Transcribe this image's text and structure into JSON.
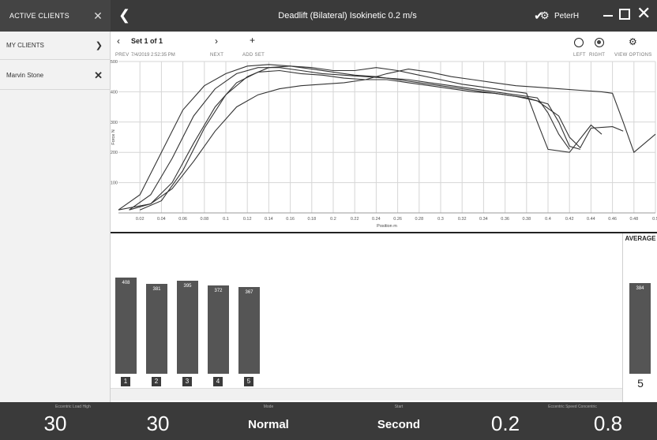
{
  "window": {
    "title": "Deadlift (Bilateral) Isokinetic 0.2 m/s",
    "user": "PeterH"
  },
  "sidebar": {
    "header": "ACTIVE CLIENTS",
    "items": [
      {
        "label": "MY CLIENTS"
      },
      {
        "label": "Marvin Stone"
      }
    ]
  },
  "set_nav": {
    "prev_label": "PREV",
    "next_label": "NEXT",
    "add_label": "ADD SET",
    "set_title": "Set 1 of 1",
    "set_date": "7/4/2019 2:52:35 PM",
    "left_label": "LEFT",
    "right_label": "RIGHT",
    "view_options_label": "VIEW OPTIONS",
    "selected_side": "right"
  },
  "chart_data": {
    "type": "line",
    "xlabel": "Position m",
    "ylabel": "Force N",
    "xlim": [
      0,
      0.5
    ],
    "ylim": [
      0,
      500
    ],
    "x_ticks": [
      "0.02",
      "0.04",
      "0.06",
      "0.08",
      "0.1",
      "0.12",
      "0.14",
      "0.16",
      "0.18",
      "0.2",
      "0.22",
      "0.24",
      "0.26",
      "0.28",
      "0.3",
      "0.32",
      "0.34",
      "0.36",
      "0.38",
      "0.4",
      "0.42",
      "0.44",
      "0.46",
      "0.48",
      "0.5"
    ],
    "y_ticks": [
      "100",
      "200",
      "300",
      "400",
      "500"
    ],
    "grid": true,
    "series": [
      {
        "points": [
          [
            0.0,
            10
          ],
          [
            0.02,
            60
          ],
          [
            0.04,
            200
          ],
          [
            0.06,
            340
          ],
          [
            0.08,
            420
          ],
          [
            0.1,
            460
          ],
          [
            0.12,
            485
          ],
          [
            0.14,
            490
          ],
          [
            0.16,
            485
          ],
          [
            0.18,
            475
          ],
          [
            0.2,
            465
          ],
          [
            0.22,
            455
          ],
          [
            0.24,
            450
          ],
          [
            0.26,
            440
          ],
          [
            0.28,
            430
          ],
          [
            0.3,
            420
          ],
          [
            0.32,
            410
          ],
          [
            0.34,
            400
          ],
          [
            0.36,
            390
          ],
          [
            0.38,
            380
          ],
          [
            0.4,
            360
          ],
          [
            0.41,
            300
          ],
          [
            0.42,
            220
          ],
          [
            0.43,
            210
          ]
        ]
      },
      {
        "points": [
          [
            0.01,
            10
          ],
          [
            0.03,
            60
          ],
          [
            0.05,
            180
          ],
          [
            0.07,
            320
          ],
          [
            0.09,
            410
          ],
          [
            0.11,
            460
          ],
          [
            0.13,
            480
          ],
          [
            0.15,
            480
          ],
          [
            0.17,
            470
          ],
          [
            0.19,
            460
          ],
          [
            0.21,
            455
          ],
          [
            0.23,
            450
          ],
          [
            0.25,
            445
          ],
          [
            0.27,
            440
          ],
          [
            0.29,
            430
          ],
          [
            0.31,
            420
          ],
          [
            0.33,
            410
          ],
          [
            0.35,
            400
          ],
          [
            0.37,
            390
          ],
          [
            0.39,
            380
          ],
          [
            0.4,
            330
          ],
          [
            0.41,
            260
          ],
          [
            0.42,
            210
          ]
        ]
      },
      {
        "points": [
          [
            0.02,
            10
          ],
          [
            0.04,
            40
          ],
          [
            0.06,
            140
          ],
          [
            0.08,
            280
          ],
          [
            0.1,
            390
          ],
          [
            0.12,
            450
          ],
          [
            0.14,
            480
          ],
          [
            0.16,
            485
          ],
          [
            0.18,
            480
          ],
          [
            0.2,
            470
          ],
          [
            0.22,
            470
          ],
          [
            0.24,
            480
          ],
          [
            0.26,
            470
          ],
          [
            0.28,
            455
          ],
          [
            0.3,
            440
          ],
          [
            0.32,
            425
          ],
          [
            0.34,
            415
          ],
          [
            0.36,
            405
          ],
          [
            0.38,
            395
          ],
          [
            0.39,
            300
          ],
          [
            0.4,
            210
          ],
          [
            0.42,
            200
          ],
          [
            0.44,
            290
          ],
          [
            0.45,
            260
          ]
        ]
      },
      {
        "points": [
          [
            0.01,
            10
          ],
          [
            0.03,
            30
          ],
          [
            0.05,
            100
          ],
          [
            0.07,
            230
          ],
          [
            0.09,
            350
          ],
          [
            0.11,
            430
          ],
          [
            0.13,
            465
          ],
          [
            0.15,
            470
          ],
          [
            0.17,
            460
          ],
          [
            0.19,
            455
          ],
          [
            0.21,
            445
          ],
          [
            0.23,
            440
          ],
          [
            0.25,
            440
          ],
          [
            0.27,
            430
          ],
          [
            0.29,
            420
          ],
          [
            0.31,
            410
          ],
          [
            0.33,
            400
          ],
          [
            0.35,
            395
          ],
          [
            0.37,
            385
          ],
          [
            0.39,
            370
          ],
          [
            0.41,
            320
          ],
          [
            0.42,
            250
          ],
          [
            0.43,
            215
          ],
          [
            0.44,
            280
          ],
          [
            0.46,
            285
          ],
          [
            0.47,
            270
          ]
        ]
      },
      {
        "points": [
          [
            0.0,
            10
          ],
          [
            0.03,
            30
          ],
          [
            0.05,
            80
          ],
          [
            0.07,
            170
          ],
          [
            0.09,
            270
          ],
          [
            0.11,
            350
          ],
          [
            0.13,
            390
          ],
          [
            0.15,
            410
          ],
          [
            0.17,
            420
          ],
          [
            0.19,
            425
          ],
          [
            0.21,
            430
          ],
          [
            0.23,
            440
          ],
          [
            0.25,
            460
          ],
          [
            0.27,
            475
          ],
          [
            0.29,
            465
          ],
          [
            0.31,
            450
          ],
          [
            0.33,
            440
          ],
          [
            0.35,
            430
          ],
          [
            0.37,
            420
          ],
          [
            0.39,
            415
          ],
          [
            0.41,
            410
          ],
          [
            0.43,
            405
          ],
          [
            0.45,
            400
          ],
          [
            0.46,
            395
          ],
          [
            0.47,
            300
          ],
          [
            0.48,
            200
          ],
          [
            0.49,
            230
          ],
          [
            0.5,
            260
          ]
        ]
      }
    ]
  },
  "reps": {
    "labels": [
      "1",
      "2",
      "3",
      "4",
      "5"
    ],
    "values": [
      408,
      381,
      395,
      372,
      367
    ]
  },
  "average": {
    "header": "AVERAGE",
    "value": 384,
    "count": "5"
  },
  "bottom": [
    {
      "label": "Eccentric Load High",
      "value": "30",
      "style": "big"
    },
    {
      "label": "",
      "value": "30",
      "style": "big"
    },
    {
      "label": "Mode",
      "value": "Normal",
      "style": "mid"
    },
    {
      "label": "Start",
      "value": "Second",
      "style": "mid"
    },
    {
      "label": "",
      "value": "0.2",
      "style": "big"
    },
    {
      "label": "Eccentric Speed Concentric",
      "value": "0.8",
      "style": "big"
    }
  ]
}
